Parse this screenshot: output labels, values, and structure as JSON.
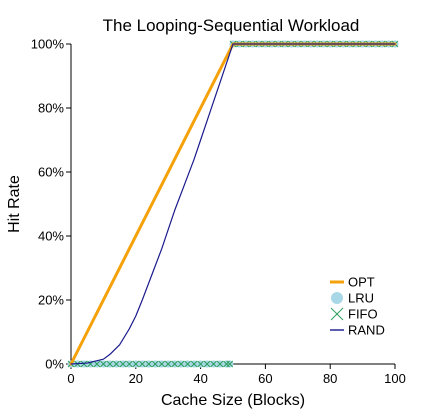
{
  "chart_data": {
    "type": "line",
    "title": "The Looping-Sequential Workload",
    "xlabel": "Cache Size (Blocks)",
    "ylabel": "Hit Rate",
    "xlim": [
      0,
      100
    ],
    "ylim": [
      0,
      100
    ],
    "xticks": [
      0,
      20,
      40,
      60,
      80,
      100
    ],
    "xtick_labels": [
      "0",
      "20",
      "40",
      "60",
      "80",
      "100"
    ],
    "yticks": [
      0,
      20,
      40,
      60,
      80,
      100
    ],
    "ytick_labels": [
      "0%",
      "20%",
      "40%",
      "60%",
      "80%",
      "100%"
    ],
    "legend_position": "bottom-right",
    "grid": false,
    "series": [
      {
        "name": "OPT",
        "style": "line",
        "color": "#f5a20a",
        "x": [
          0,
          49,
          50,
          100
        ],
        "y": [
          0,
          98,
          100,
          100
        ]
      },
      {
        "name": "LRU",
        "style": "circle-markers",
        "color": "#a8d8e8",
        "x": [
          0,
          2,
          4,
          6,
          8,
          10,
          12,
          14,
          16,
          18,
          20,
          22,
          24,
          26,
          28,
          30,
          32,
          34,
          36,
          38,
          40,
          42,
          44,
          46,
          48,
          49,
          50,
          52,
          54,
          56,
          58,
          60,
          62,
          64,
          66,
          68,
          70,
          72,
          74,
          76,
          78,
          80,
          82,
          84,
          86,
          88,
          90,
          92,
          94,
          96,
          98,
          100
        ],
        "y": [
          0,
          0,
          0,
          0,
          0,
          0,
          0,
          0,
          0,
          0,
          0,
          0,
          0,
          0,
          0,
          0,
          0,
          0,
          0,
          0,
          0,
          0,
          0,
          0,
          0,
          0,
          100,
          100,
          100,
          100,
          100,
          100,
          100,
          100,
          100,
          100,
          100,
          100,
          100,
          100,
          100,
          100,
          100,
          100,
          100,
          100,
          100,
          100,
          100,
          100,
          100,
          100
        ]
      },
      {
        "name": "FIFO",
        "style": "x-markers",
        "color": "#2e9e5b",
        "x": [
          0,
          2,
          4,
          6,
          8,
          10,
          12,
          14,
          16,
          18,
          20,
          22,
          24,
          26,
          28,
          30,
          32,
          34,
          36,
          38,
          40,
          42,
          44,
          46,
          48,
          49,
          50,
          52,
          54,
          56,
          58,
          60,
          62,
          64,
          66,
          68,
          70,
          72,
          74,
          76,
          78,
          80,
          82,
          84,
          86,
          88,
          90,
          92,
          94,
          96,
          98,
          100
        ],
        "y": [
          0,
          0,
          0,
          0,
          0,
          0,
          0,
          0,
          0,
          0,
          0,
          0,
          0,
          0,
          0,
          0,
          0,
          0,
          0,
          0,
          0,
          0,
          0,
          0,
          0,
          0,
          100,
          100,
          100,
          100,
          100,
          100,
          100,
          100,
          100,
          100,
          100,
          100,
          100,
          100,
          100,
          100,
          100,
          100,
          100,
          100,
          100,
          100,
          100,
          100,
          100,
          100
        ]
      },
      {
        "name": "RAND",
        "style": "line",
        "color": "#1a1a8c",
        "x": [
          0,
          5,
          10,
          12,
          15,
          18,
          20,
          22,
          25,
          28,
          30,
          32,
          35,
          38,
          40,
          42,
          44,
          46,
          48,
          49,
          50,
          55,
          60,
          70,
          80,
          90,
          100
        ],
        "y": [
          0,
          0.3,
          1.5,
          3,
          6,
          11,
          15,
          20,
          28,
          36,
          42,
          48,
          56,
          64,
          70,
          76,
          82,
          88,
          94,
          97,
          100,
          100,
          100,
          100,
          100,
          100,
          100
        ]
      }
    ]
  }
}
